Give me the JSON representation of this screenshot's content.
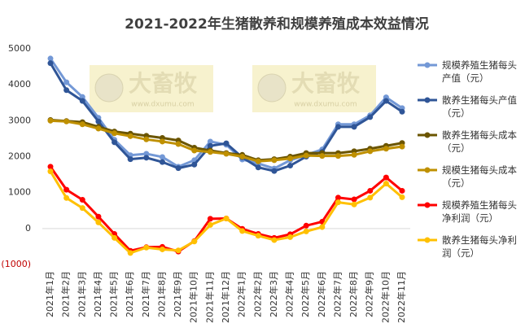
{
  "chart_data": {
    "type": "line",
    "title": "2021-2022年生猪散养和规模养殖成本效益情况",
    "watermark": "大畜牧",
    "watermark_url": "www.dxumu.com",
    "categories": [
      "2021年1月",
      "2021年2月",
      "2021年3月",
      "2021年4月",
      "2021年5月",
      "2021年6月",
      "2021年7月",
      "2021年8月",
      "2021年9月",
      "2021年10月",
      "2021年11月",
      "2021年12月",
      "2022年1月",
      "2022年2月",
      "2022年3月",
      "2022年4月",
      "2022年5月",
      "2022年6月",
      "2022年7月",
      "2022年8月",
      "2022年9月",
      "2022年10月",
      "2022年11月"
    ],
    "ylim": [
      -1000,
      5000
    ],
    "yticks": [
      {
        "value": -1000,
        "label": "(1000)"
      },
      0,
      1000,
      2000,
      3000,
      4000,
      5000
    ],
    "grid": false,
    "series": [
      {
        "name": "规模养殖生猪每头产值（元）",
        "color": "#7398d6",
        "values": [
          4730,
          4070,
          3660,
          3080,
          2470,
          2040,
          2080,
          1990,
          1720,
          1900,
          2420,
          2330,
          1920,
          1810,
          1670,
          1900,
          2050,
          2200,
          2900,
          2900,
          3150,
          3650,
          3350
        ]
      },
      {
        "name": "散养生猪每头产值（元）",
        "color": "#2f5597",
        "values": [
          4600,
          3850,
          3550,
          2980,
          2400,
          1930,
          1970,
          1850,
          1680,
          1780,
          2300,
          2370,
          1980,
          1700,
          1600,
          1750,
          2000,
          2130,
          2830,
          2830,
          3100,
          3550,
          3250
        ]
      },
      {
        "name": "散养生猪每头成本（元）",
        "color": "#6b5500",
        "values": [
          3020,
          2990,
          2960,
          2830,
          2700,
          2640,
          2580,
          2520,
          2450,
          2250,
          2170,
          2100,
          2050,
          1900,
          1930,
          2000,
          2100,
          2100,
          2100,
          2150,
          2220,
          2300,
          2380
        ]
      },
      {
        "name": "规模生猪每头成本（元）",
        "color": "#bf9000",
        "values": [
          3000,
          2980,
          2900,
          2780,
          2650,
          2570,
          2480,
          2420,
          2350,
          2170,
          2130,
          2080,
          2000,
          1870,
          1900,
          1950,
          2030,
          2020,
          2020,
          2050,
          2150,
          2220,
          2280
        ]
      },
      {
        "name": "规模养殖生猪每头净利润（元）",
        "color": "#ff0000",
        "values": [
          1720,
          1080,
          800,
          330,
          -150,
          -620,
          -520,
          -510,
          -640,
          -350,
          270,
          280,
          -10,
          -150,
          -260,
          -160,
          80,
          190,
          860,
          810,
          1050,
          1420,
          1050
        ]
      },
      {
        "name": "散养生猪每头净利润（元）",
        "color": "#ffc000",
        "values": [
          1590,
          850,
          570,
          170,
          -260,
          -680,
          -530,
          -580,
          -610,
          -360,
          100,
          280,
          -70,
          -200,
          -320,
          -240,
          -80,
          40,
          730,
          670,
          860,
          1250,
          870
        ]
      }
    ]
  }
}
